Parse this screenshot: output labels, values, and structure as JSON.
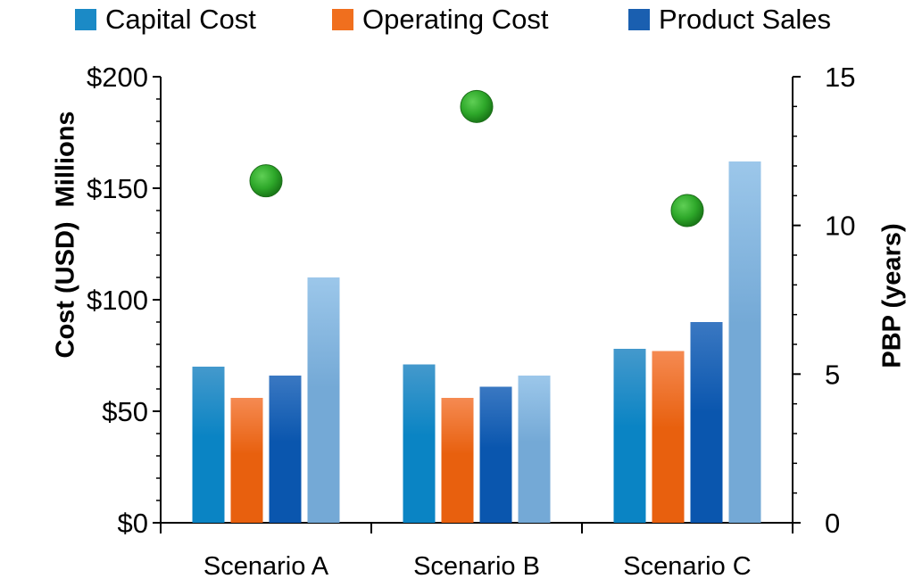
{
  "chart_data": {
    "type": "bar",
    "categories": [
      "Scenario A",
      "Scenario B",
      "Scenario C"
    ],
    "series": [
      {
        "name": "Capital Cost",
        "values": [
          70,
          71,
          78
        ],
        "color": "#1b8ac6"
      },
      {
        "name": "Operating Cost",
        "values": [
          56,
          56,
          77
        ],
        "color": "#f06f1e"
      },
      {
        "name": "Product Sales",
        "values": [
          66,
          61,
          90
        ],
        "color": "#1a5fb0"
      },
      {
        "values": [
          110,
          66,
          162
        ],
        "color": "#8fbde4"
      }
    ],
    "pbp": {
      "values": [
        11.5,
        14.0,
        10.5
      ],
      "color": "#2ea82a"
    },
    "y_left": {
      "label": "Cost (USD)",
      "unit_label": "Millions",
      "ylim": [
        0,
        200
      ],
      "ticks": [
        "$0",
        "$50",
        "$100",
        "$150",
        "$200"
      ],
      "tick_values": [
        0,
        50,
        100,
        150,
        200
      ]
    },
    "y_right": {
      "label": "PBP (years)",
      "ylim": [
        0,
        15
      ],
      "ticks": [
        "0",
        "5",
        "10",
        "15"
      ],
      "tick_values": [
        0,
        5,
        10,
        15
      ]
    },
    "legend_position": "top",
    "grid": false
  }
}
